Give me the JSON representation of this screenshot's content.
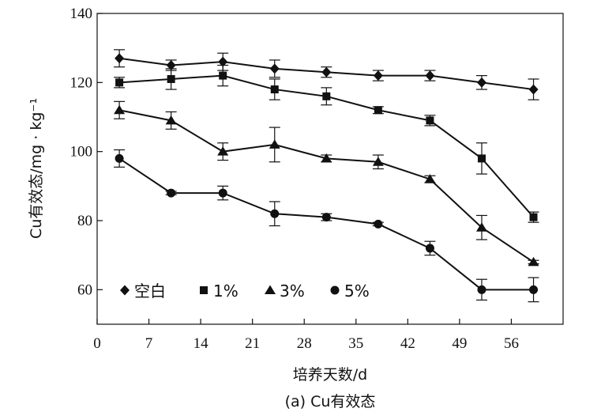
{
  "chart_data": {
    "type": "line",
    "xlabel": "培养天数/d",
    "ylabel": "Cu有效态/mg · kg⁻¹",
    "caption": "(a) Cu有效态",
    "xlim": [
      0,
      63
    ],
    "ylim": [
      50,
      140
    ],
    "xticks": [
      0,
      7,
      14,
      21,
      28,
      35,
      42,
      49,
      56
    ],
    "yticks": [
      60,
      80,
      100,
      120,
      140
    ],
    "x": [
      3,
      10,
      17,
      24,
      31,
      38,
      45,
      52,
      59
    ],
    "legend_position": "bottom-left",
    "grid": false,
    "series": [
      {
        "name": "空白",
        "marker": "diamond",
        "values": [
          127,
          125,
          126,
          124,
          123,
          122,
          122,
          120,
          118
        ],
        "errors": [
          2.5,
          1.5,
          2.5,
          2.5,
          1.5,
          1.5,
          1.5,
          2.0,
          3.0
        ]
      },
      {
        "name": "1%",
        "marker": "square",
        "values": [
          120,
          121,
          122,
          118,
          116,
          112,
          109,
          98,
          81
        ],
        "errors": [
          1.5,
          3.0,
          3.0,
          3.0,
          2.5,
          1.0,
          1.5,
          4.5,
          1.5
        ]
      },
      {
        "name": "3%",
        "marker": "triangle",
        "values": [
          112,
          109,
          100,
          102,
          98,
          97,
          92,
          78,
          68
        ],
        "errors": [
          2.5,
          2.5,
          2.5,
          5.0,
          1.0,
          2.0,
          1.0,
          3.5,
          0.5
        ]
      },
      {
        "name": "5%",
        "marker": "circle",
        "values": [
          98,
          88,
          88,
          82,
          81,
          79,
          72,
          60,
          60
        ],
        "errors": [
          2.5,
          0.5,
          2.0,
          3.5,
          1.0,
          0.5,
          2.0,
          3.0,
          3.5
        ]
      }
    ]
  }
}
